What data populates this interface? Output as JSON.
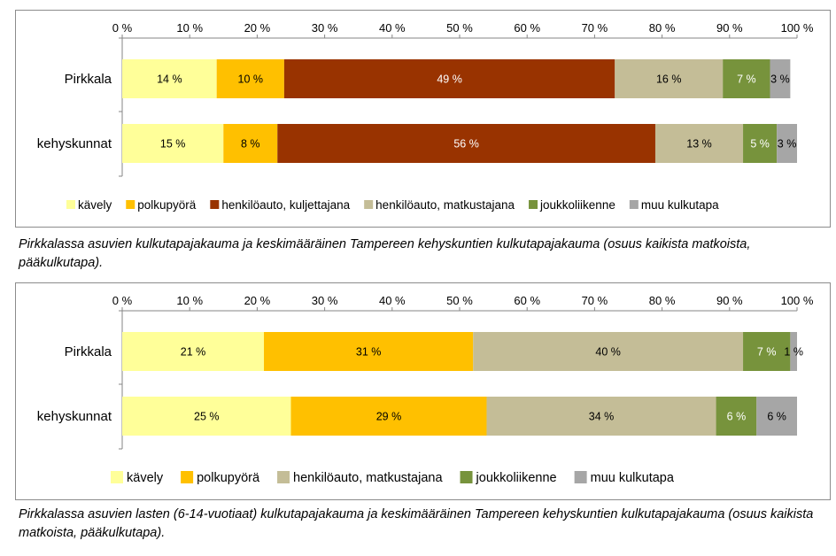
{
  "chart_data": [
    {
      "type": "bar",
      "stacked": true,
      "orientation": "horizontal",
      "title": "",
      "xlim": [
        0,
        100
      ],
      "x_ticks": [
        "0 %",
        "10 %",
        "20 %",
        "30 %",
        "40 %",
        "50 %",
        "60 %",
        "70 %",
        "80 %",
        "90 %",
        "100 %"
      ],
      "categories": [
        "Pirkkala",
        "kehyskunnat"
      ],
      "legend_position": "bottom",
      "series": [
        {
          "name": "kävely",
          "color": "#FFFF99",
          "values": [
            14,
            15
          ],
          "labels": [
            "14 %",
            "15 %"
          ]
        },
        {
          "name": "polkupyörä",
          "color": "#FFC000",
          "values": [
            10,
            8
          ],
          "labels": [
            "10 %",
            "8 %"
          ]
        },
        {
          "name": "henkilöauto, kuljettajana",
          "color": "#993300",
          "values": [
            49,
            56
          ],
          "labels": [
            "49 %",
            "56 %"
          ]
        },
        {
          "name": "henkilöauto, matkustajana",
          "color": "#C4BD97",
          "values": [
            16,
            13
          ],
          "labels": [
            "16 %",
            "13 %"
          ]
        },
        {
          "name": "joukkoliikenne",
          "color": "#77933C",
          "values": [
            7,
            5
          ],
          "labels": [
            "7 %",
            "5 %"
          ]
        },
        {
          "name": "muu kulkutapa",
          "color": "#A6A6A6",
          "values": [
            3,
            3
          ],
          "labels": [
            "3 %",
            "3 %"
          ]
        }
      ],
      "caption": "Pirkkalassa asuvien kulkutapajakauma ja keskimääräinen Tampereen kehyskuntien kulkutapajakauma (osuus kaikista matkoista, pääkulkutapa)."
    },
    {
      "type": "bar",
      "stacked": true,
      "orientation": "horizontal",
      "title": "",
      "xlim": [
        0,
        100
      ],
      "x_ticks": [
        "0 %",
        "10 %",
        "20 %",
        "30 %",
        "40 %",
        "50 %",
        "60 %",
        "70 %",
        "80 %",
        "90 %",
        "100 %"
      ],
      "categories": [
        "Pirkkala",
        "kehyskunnat"
      ],
      "legend_position": "bottom",
      "series": [
        {
          "name": "kävely",
          "color": "#FFFF99",
          "values": [
            21,
            25
          ],
          "labels": [
            "21 %",
            "25 %"
          ]
        },
        {
          "name": "polkupyörä",
          "color": "#FFC000",
          "values": [
            31,
            29
          ],
          "labels": [
            "31 %",
            "29 %"
          ]
        },
        {
          "name": "henkilöauto, matkustajana",
          "color": "#C4BD97",
          "values": [
            40,
            34
          ],
          "labels": [
            "40 %",
            "34 %"
          ]
        },
        {
          "name": "joukkoliikenne",
          "color": "#77933C",
          "values": [
            7,
            6
          ],
          "labels": [
            "7 %",
            "6 %"
          ]
        },
        {
          "name": "muu kulkutapa",
          "color": "#A6A6A6",
          "values": [
            1,
            6
          ],
          "labels": [
            "1 %",
            "6 %"
          ]
        }
      ],
      "caption": "Pirkkalassa asuvien lasten (6-14-vuotiaat) kulkutapajakauma ja keskimääräinen Tampereen kehyskuntien kulkutapajakauma (osuus kaikista matkoista, pääkulkutapa)."
    }
  ]
}
